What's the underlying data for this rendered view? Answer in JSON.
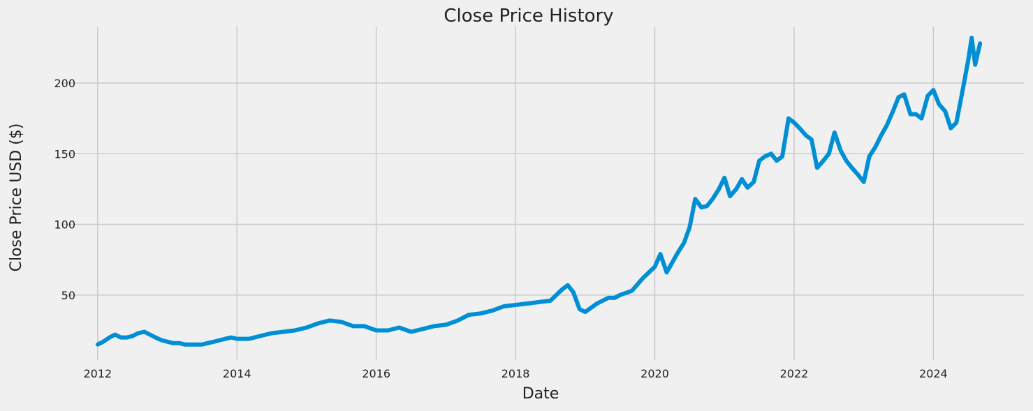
{
  "chart_data": {
    "type": "line",
    "title": "Close Price History",
    "xlabel": "Date",
    "ylabel": "Close Price USD ($)",
    "x_ticks": [
      "2012",
      "2014",
      "2016",
      "2018",
      "2020",
      "2022",
      "2024"
    ],
    "y_ticks": [
      "50",
      "100",
      "150",
      "200"
    ],
    "xlim": [
      2011.5,
      2025.3
    ],
    "ylim": [
      4,
      240
    ],
    "grid": true,
    "legend": "none",
    "colors": {
      "line": "#008fd5",
      "grid": "#cbcbcb",
      "background": "#f0f0f0"
    },
    "series": [
      {
        "x": [
          2012.0,
          2012.08,
          2012.17,
          2012.25,
          2012.33,
          2012.42,
          2012.5,
          2012.58,
          2012.67,
          2012.75,
          2012.83,
          2012.92,
          2013.0,
          2013.08,
          2013.17,
          2013.25,
          2013.33,
          2013.42,
          2013.5,
          2013.58,
          2013.67,
          2013.75,
          2013.83,
          2013.92,
          2014.0,
          2014.17,
          2014.33,
          2014.5,
          2014.67,
          2014.83,
          2015.0,
          2015.17,
          2015.33,
          2015.5,
          2015.67,
          2015.83,
          2016.0,
          2016.17,
          2016.33,
          2016.5,
          2016.67,
          2016.83,
          2017.0,
          2017.17,
          2017.33,
          2017.5,
          2017.67,
          2017.83,
          2018.0,
          2018.17,
          2018.33,
          2018.5,
          2018.67,
          2018.75,
          2018.83,
          2018.92,
          2019.0,
          2019.17,
          2019.33,
          2019.42,
          2019.5,
          2019.67,
          2019.83,
          2020.0,
          2020.08,
          2020.17,
          2020.25,
          2020.33,
          2020.42,
          2020.5,
          2020.58,
          2020.67,
          2020.75,
          2020.83,
          2020.92,
          2021.0,
          2021.08,
          2021.17,
          2021.25,
          2021.33,
          2021.42,
          2021.5,
          2021.58,
          2021.67,
          2021.75,
          2021.83,
          2021.92,
          2022.0,
          2022.08,
          2022.17,
          2022.25,
          2022.33,
          2022.42,
          2022.5,
          2022.58,
          2022.67,
          2022.75,
          2022.83,
          2022.92,
          2023.0,
          2023.08,
          2023.17,
          2023.25,
          2023.33,
          2023.42,
          2023.5,
          2023.58,
          2023.67,
          2023.75,
          2023.83,
          2023.92,
          2024.0,
          2024.08,
          2024.17,
          2024.25,
          2024.33,
          2024.42,
          2024.5,
          2024.55,
          2024.6,
          2024.67
        ],
        "values": [
          15,
          17,
          20,
          22,
          20,
          20,
          21,
          23,
          24,
          22,
          20,
          18,
          17,
          16,
          16,
          15,
          15,
          15,
          15,
          16,
          17,
          18,
          19,
          20,
          19,
          19,
          21,
          23,
          24,
          25,
          27,
          30,
          32,
          31,
          28,
          28,
          25,
          25,
          27,
          24,
          26,
          28,
          29,
          32,
          36,
          37,
          39,
          42,
          43,
          44,
          45,
          46,
          54,
          57,
          52,
          40,
          38,
          44,
          48,
          48,
          50,
          53,
          62,
          70,
          79,
          66,
          73,
          80,
          87,
          98,
          118,
          112,
          113,
          118,
          125,
          133,
          120,
          125,
          132,
          126,
          130,
          145,
          148,
          150,
          145,
          148,
          175,
          172,
          168,
          163,
          160,
          140,
          145,
          150,
          165,
          152,
          145,
          140,
          135,
          130,
          148,
          155,
          163,
          170,
          180,
          190,
          192,
          178,
          178,
          175,
          191,
          195,
          185,
          180,
          168,
          172,
          195,
          216,
          232,
          213,
          228
        ]
      }
    ]
  }
}
